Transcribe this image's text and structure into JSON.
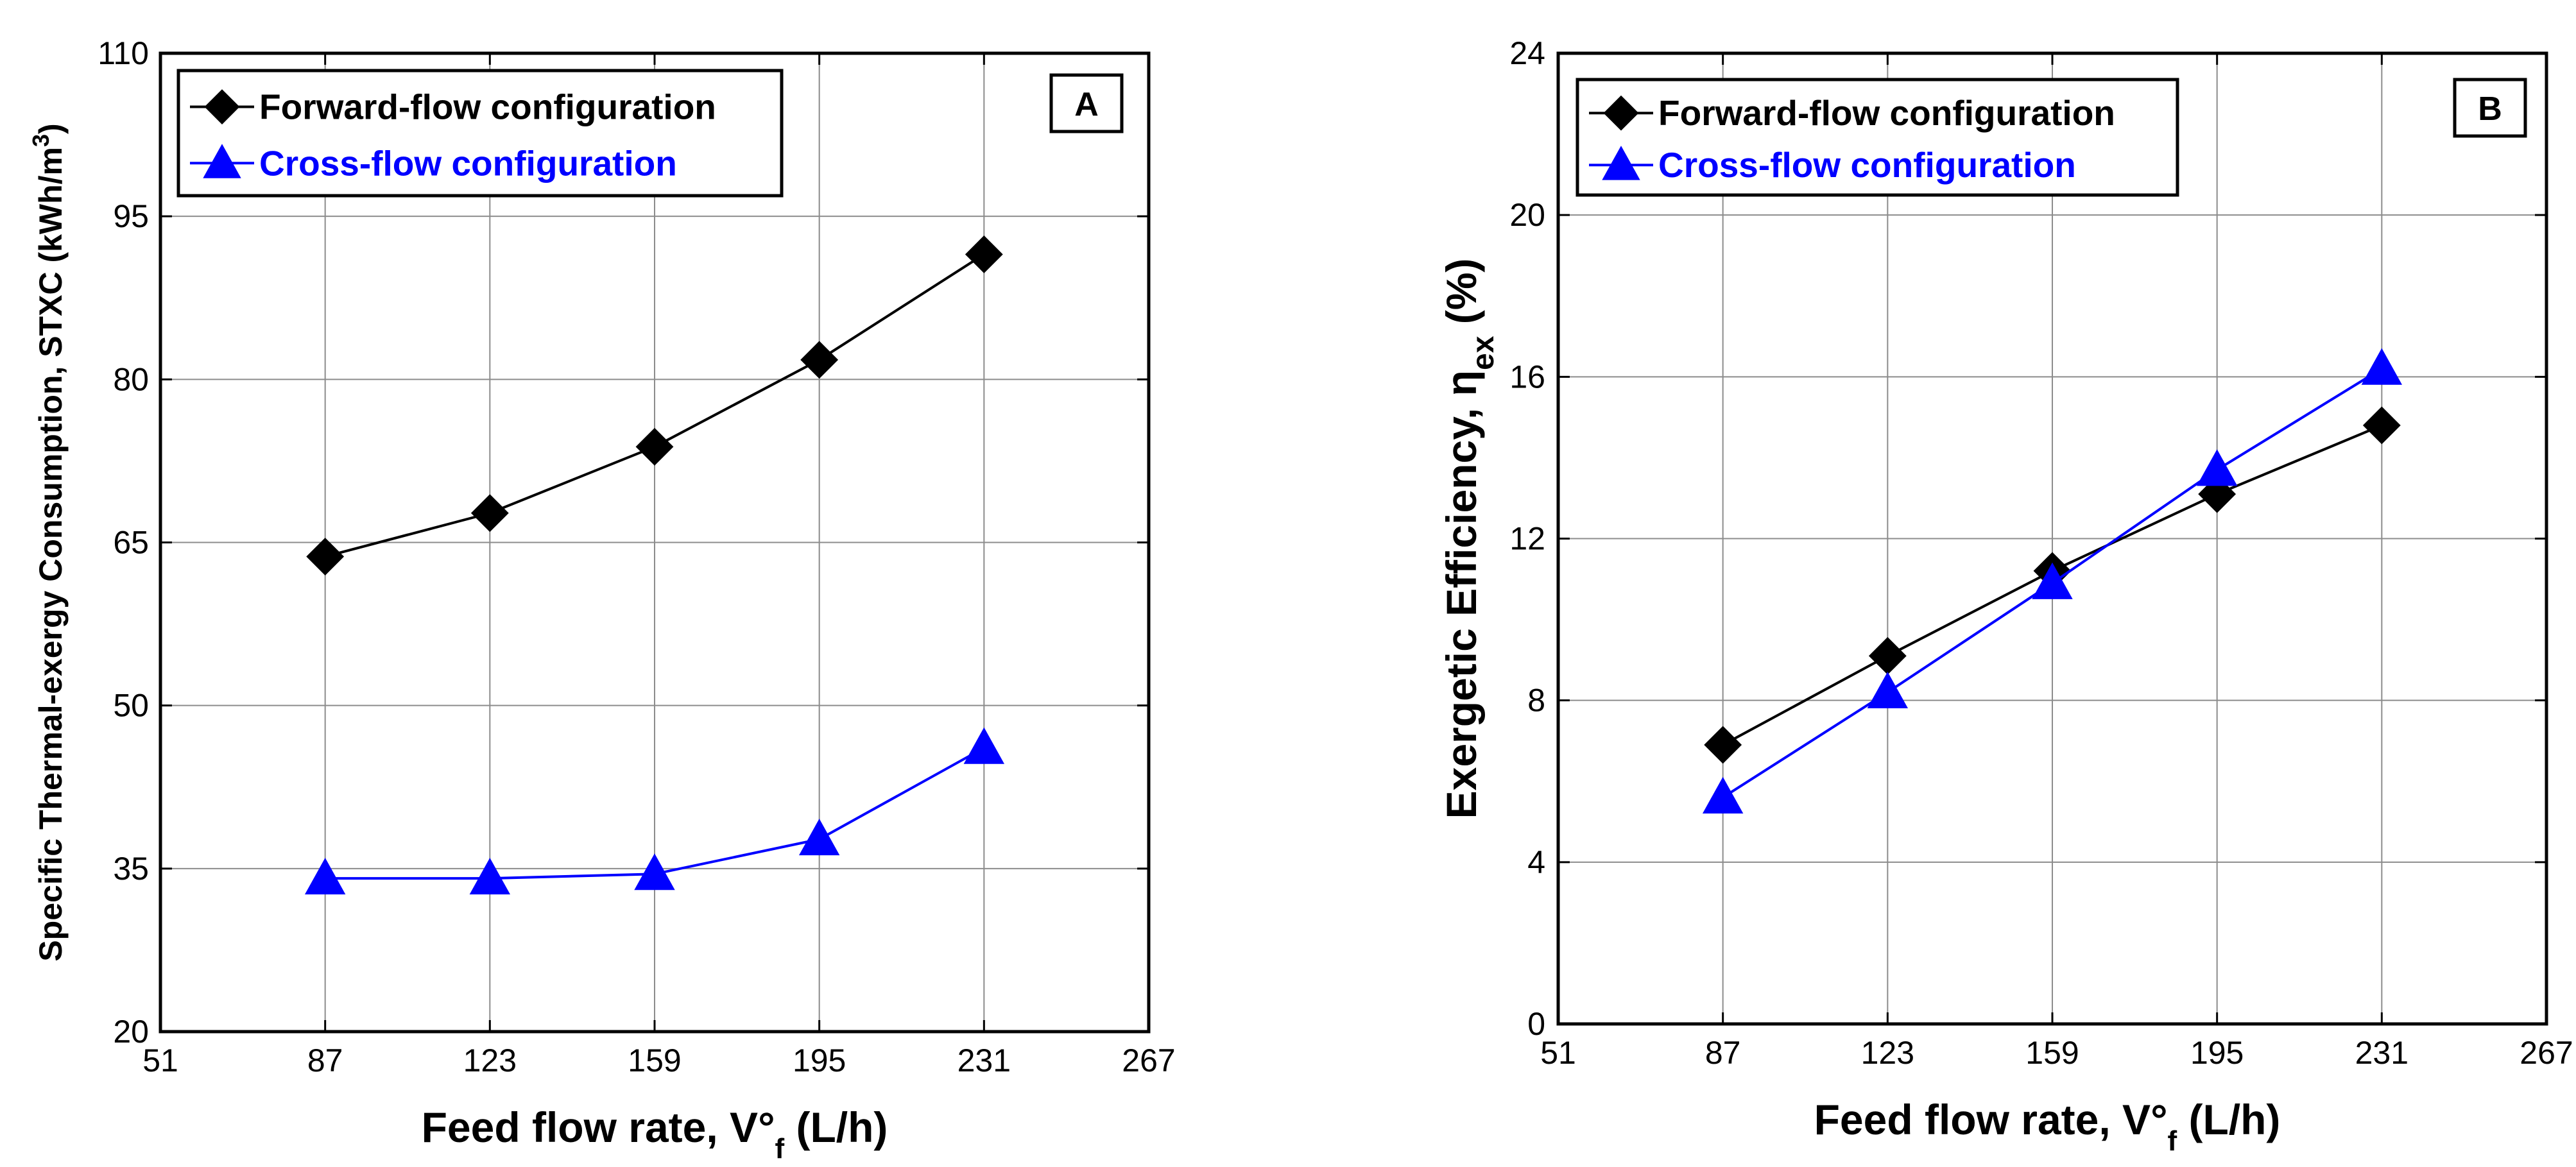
{
  "chart_data": [
    {
      "type": "line",
      "panel": "A",
      "title": "",
      "xlabel": {
        "main": "Feed flow rate, V°",
        "sub": "f",
        "tail": " (L/h)"
      },
      "ylabel": {
        "main": "Specific Thermal-exergy Consumption, STXC (kWh/m",
        "sup": "3",
        "tail": ")"
      },
      "xlim": [
        51,
        267
      ],
      "ylim": [
        20,
        110
      ],
      "xticks": [
        51,
        87,
        123,
        159,
        195,
        231,
        267
      ],
      "yticks": [
        20,
        35,
        50,
        65,
        80,
        95,
        110
      ],
      "x": [
        87,
        123,
        159,
        195,
        231
      ],
      "grid": true,
      "legend_position": "top-left",
      "series": [
        {
          "name": "Forward-flow configuration",
          "color": "#000000",
          "marker": "diamond",
          "values": [
            63.7,
            67.7,
            73.8,
            81.8,
            91.5
          ]
        },
        {
          "name": "Cross-flow configuration",
          "color": "#0000ff",
          "marker": "triangle",
          "values": [
            34.1,
            34.1,
            34.5,
            37.7,
            46.1
          ]
        }
      ]
    },
    {
      "type": "line",
      "panel": "B",
      "title": "",
      "xlabel": {
        "main": "Feed flow rate, V°",
        "sub": "f",
        "tail": " (L/h)"
      },
      "ylabel": {
        "main": "Exergetic Efficiency, η",
        "sub": "ex",
        "tail": " (%)"
      },
      "xlim": [
        51,
        267
      ],
      "ylim": [
        0,
        24
      ],
      "xticks": [
        51,
        87,
        123,
        159,
        195,
        231,
        267
      ],
      "yticks": [
        0,
        4,
        8,
        12,
        16,
        20,
        24
      ],
      "x": [
        87,
        123,
        159,
        195,
        231
      ],
      "grid": true,
      "legend_position": "top-left",
      "series": [
        {
          "name": "Forward-flow configuration",
          "color": "#000000",
          "marker": "diamond",
          "values": [
            6.9,
            9.1,
            11.2,
            13.1,
            14.8
          ]
        },
        {
          "name": "Cross-flow configuration",
          "color": "#0000ff",
          "marker": "triangle",
          "values": [
            5.6,
            8.2,
            10.9,
            13.7,
            16.2
          ]
        }
      ]
    }
  ]
}
